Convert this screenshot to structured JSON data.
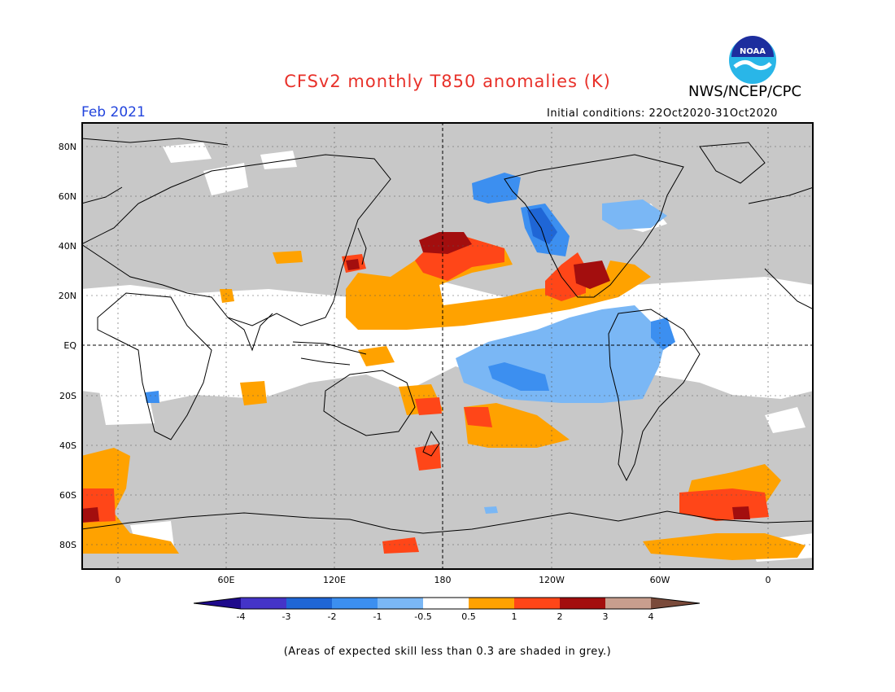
{
  "title": "CFSv2 monthly T850 anomalies (K)",
  "agency": "NWS/NCEP/CPC",
  "logo_text": "NOAA",
  "forecast_month": "Feb 2021",
  "initial_conditions": "Initial conditions: 22Oct2020-31Oct2020",
  "lat_labels": [
    "80N",
    "60N",
    "40N",
    "20N",
    "EQ",
    "20S",
    "40S",
    "60S",
    "80S"
  ],
  "lon_labels": [
    "0",
    "60E",
    "120E",
    "180",
    "120W",
    "60W",
    "0"
  ],
  "colorbar": {
    "tick_labels": [
      "-4",
      "-3",
      "-2",
      "-1",
      "-0.5",
      "0.5",
      "1",
      "2",
      "3",
      "4"
    ],
    "colors": [
      "#1e0a8c",
      "#4434c8",
      "#1f66d6",
      "#3c8ff0",
      "#7ab7f5",
      "#ffffff",
      "#ffa200",
      "#ff4618",
      "#a30e0e",
      "#c89e8e",
      "#7a4a3a"
    ]
  },
  "footnote": "(Areas of expected skill less than 0.3 are shaded in grey.)"
}
